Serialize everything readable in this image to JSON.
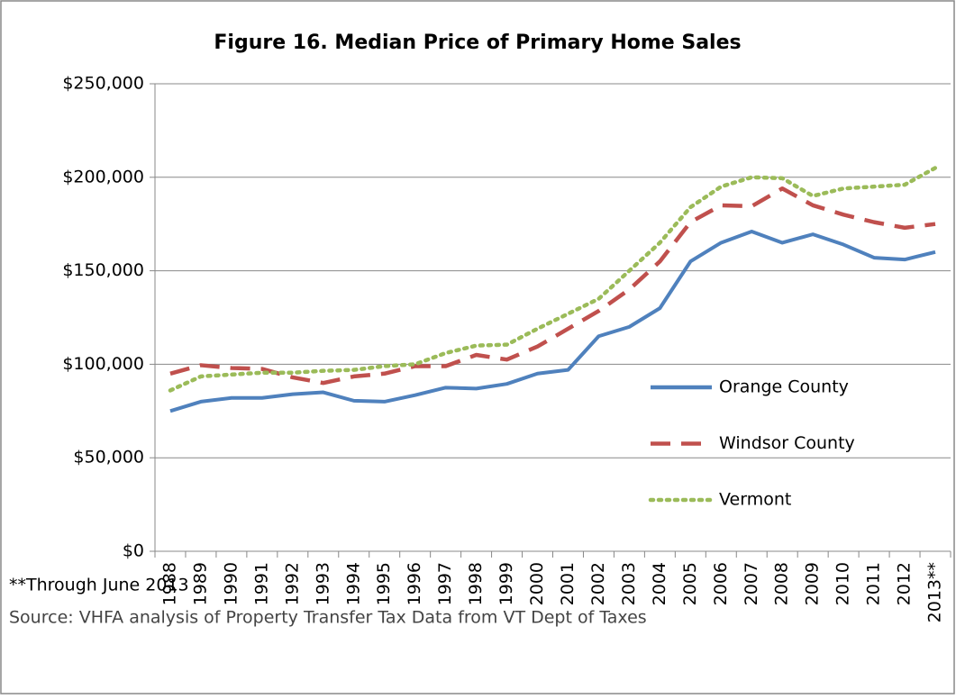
{
  "chart_data": {
    "type": "line",
    "title": "Figure 16. Median Price of Primary Home Sales",
    "categories": [
      "1988",
      "1989",
      "1990",
      "1991",
      "1992",
      "1993",
      "1994",
      "1995",
      "1996",
      "1997",
      "1998",
      "1999",
      "2000",
      "2001",
      "2002",
      "2003",
      "2004",
      "2005",
      "2006",
      "2007",
      "2008",
      "2009",
      "2010",
      "2011",
      "2012",
      "2013**"
    ],
    "series": [
      {
        "name": "Orange County",
        "color": "#4f81bd",
        "dash": "solid",
        "values": [
          75000,
          80000,
          82000,
          82000,
          84000,
          85000,
          80500,
          80000,
          83500,
          87500,
          87000,
          89500,
          95000,
          97000,
          115000,
          120000,
          130000,
          155000,
          165000,
          171000,
          165000,
          169500,
          164000,
          157000,
          156000,
          160000
        ]
      },
      {
        "name": "Windsor County",
        "color": "#c0504d",
        "dash": "dashed",
        "values": [
          95000,
          99500,
          98000,
          97500,
          93000,
          90000,
          93500,
          95000,
          99000,
          99000,
          105000,
          102500,
          109500,
          119000,
          128500,
          140000,
          155000,
          176000,
          185000,
          184500,
          194000,
          185000,
          180000,
          176000,
          173000,
          175000
        ]
      },
      {
        "name": "Vermont",
        "color": "#9bbb59",
        "dash": "dotted",
        "values": [
          86000,
          93500,
          94500,
          95500,
          95500,
          96500,
          97000,
          99000,
          100000,
          106000,
          110000,
          110500,
          119000,
          127000,
          135000,
          150000,
          165000,
          184000,
          195000,
          200000,
          199500,
          190000,
          194000,
          195000,
          196000,
          205000
        ]
      }
    ],
    "ylim": [
      0,
      250000
    ],
    "yticks": [
      {
        "value": 0,
        "label": "$0"
      },
      {
        "value": 50000,
        "label": "$50,000"
      },
      {
        "value": 100000,
        "label": "$100,000"
      },
      {
        "value": 150000,
        "label": "$150,000"
      },
      {
        "value": 200000,
        "label": "$200,000"
      },
      {
        "value": 250000,
        "label": "$250,000"
      }
    ],
    "grid": true,
    "legend": "right",
    "notes": [
      "**Through June 2013",
      "Source: VHFA analysis of Property Transfer Tax Data from VT Dept of Taxes"
    ]
  }
}
